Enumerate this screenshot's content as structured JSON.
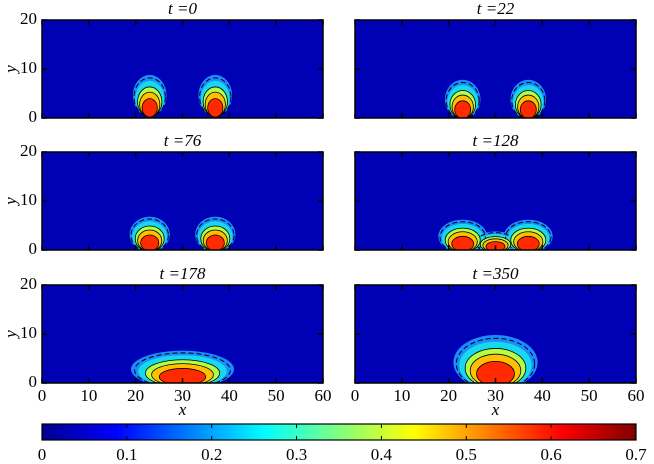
{
  "chart_data": [
    {
      "type": "contour",
      "title": "t =0",
      "ylabel": "y",
      "xlim": [
        0,
        60
      ],
      "ylim": [
        0,
        20
      ],
      "xticks": [
        0,
        10,
        20,
        30,
        40,
        50,
        60
      ],
      "yticks": [
        0,
        10,
        20
      ]
    },
    {
      "type": "contour",
      "title": "t =22",
      "xlim": [
        0,
        60
      ],
      "ylim": [
        0,
        20
      ],
      "xticks": [
        0,
        10,
        20,
        30,
        40,
        50,
        60
      ],
      "yticks": [
        0,
        10,
        20
      ]
    },
    {
      "type": "contour",
      "title": "t =76",
      "ylabel": "y",
      "xlim": [
        0,
        60
      ],
      "ylim": [
        0,
        20
      ],
      "xticks": [
        0,
        10,
        20,
        30,
        40,
        50,
        60
      ],
      "yticks": [
        0,
        10,
        20
      ]
    },
    {
      "type": "contour",
      "title": "t =128",
      "xlim": [
        0,
        60
      ],
      "ylim": [
        0,
        20
      ],
      "xticks": [
        0,
        10,
        20,
        30,
        40,
        50,
        60
      ],
      "yticks": [
        0,
        10,
        20
      ]
    },
    {
      "type": "contour",
      "title": "t =178",
      "xlabel": "x",
      "ylabel": "y",
      "xlim": [
        0,
        60
      ],
      "ylim": [
        0,
        20
      ],
      "xticks": [
        0,
        10,
        20,
        30,
        40,
        50,
        60
      ],
      "yticks": [
        0,
        10,
        20
      ]
    },
    {
      "type": "contour",
      "title": "t =350",
      "xlabel": "x",
      "xlim": [
        0,
        60
      ],
      "ylim": [
        0,
        20
      ],
      "xticks": [
        0,
        10,
        20,
        30,
        40,
        50,
        60
      ],
      "yticks": [
        0,
        10,
        20
      ]
    },
    {
      "type": "colorbar",
      "clim": [
        0,
        0.7
      ],
      "ticks": [
        0,
        0.1,
        0.2,
        0.3,
        0.4,
        0.5,
        0.6,
        0.7
      ]
    }
  ]
}
